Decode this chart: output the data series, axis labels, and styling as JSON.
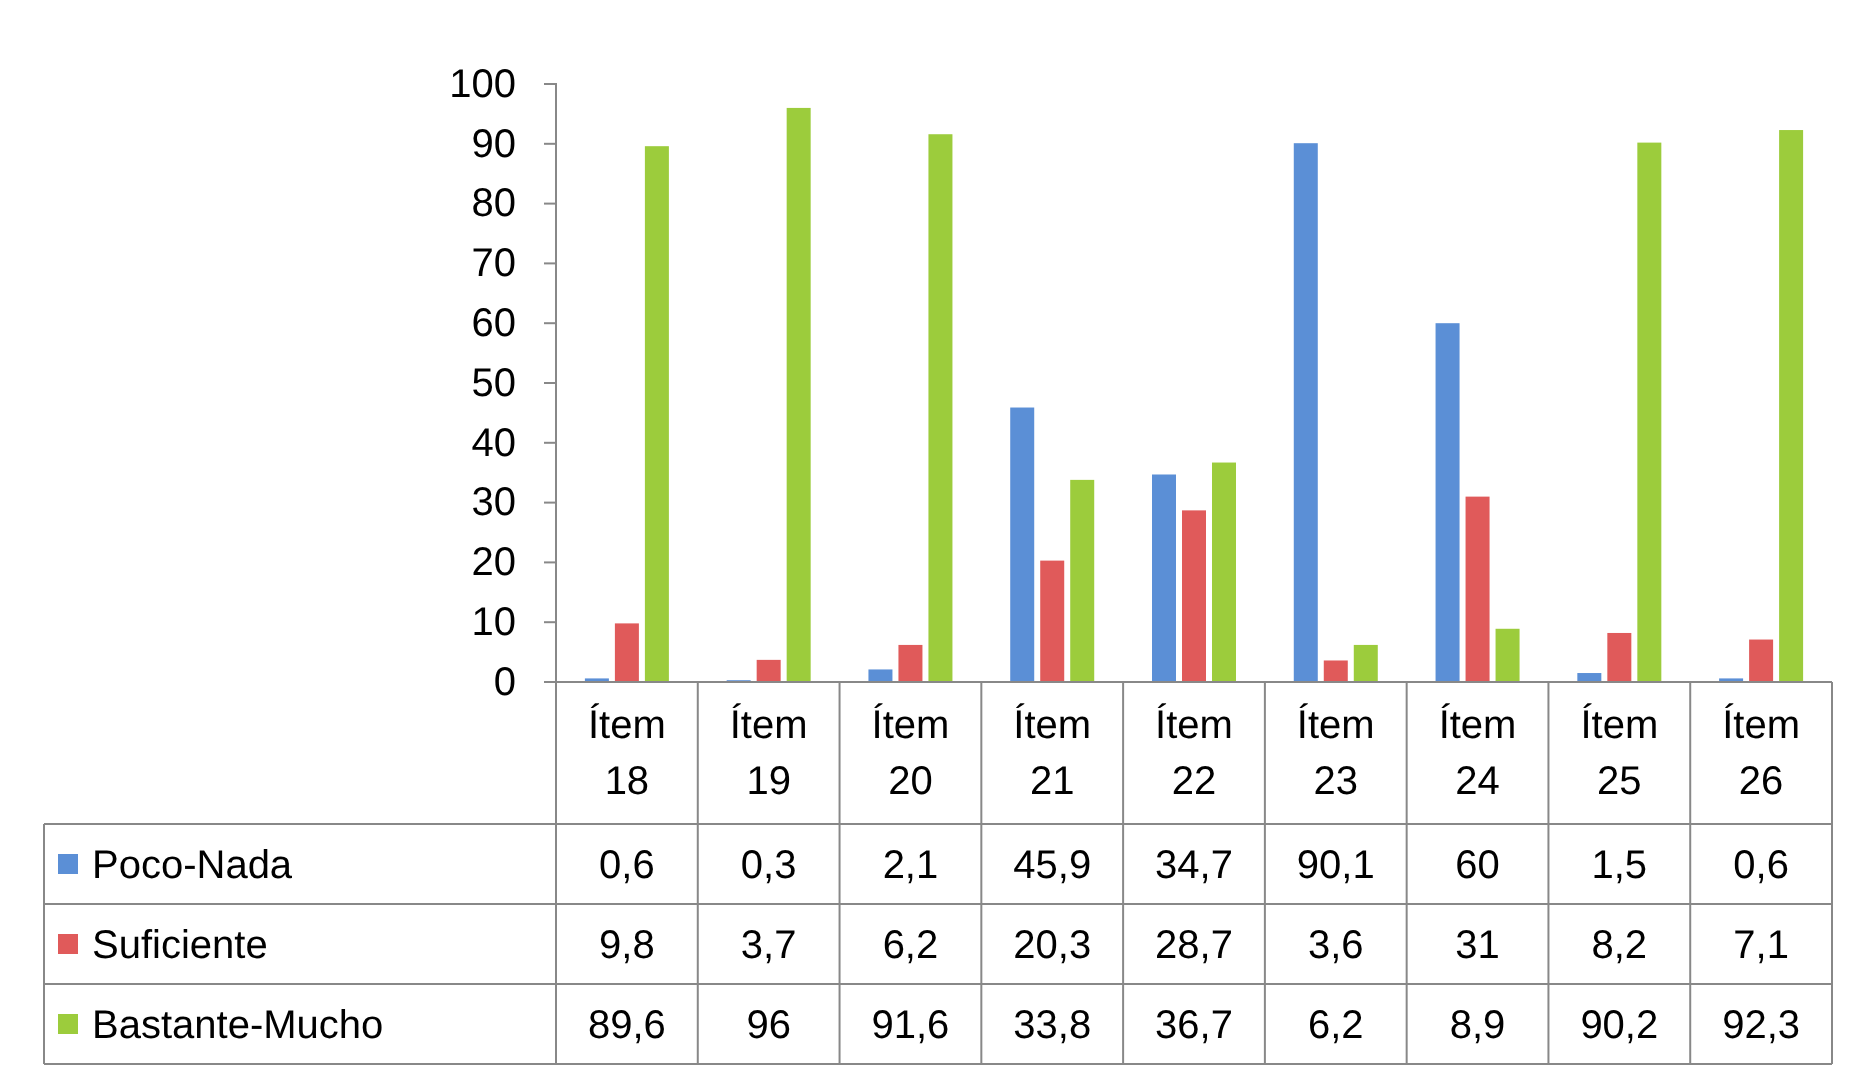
{
  "chart_data": {
    "type": "bar",
    "categories": [
      "Ítem 18",
      "Ítem 19",
      "Ítem 20",
      "Ítem 21",
      "Ítem 22",
      "Ítem 23",
      "Ítem 24",
      "Ítem 25",
      "Ítem 26"
    ],
    "series": [
      {
        "name": "Poco-Nada",
        "color": "#5b8fd6",
        "values": [
          0.6,
          0.3,
          2.1,
          45.9,
          34.7,
          90.1,
          60,
          1.5,
          0.6
        ],
        "value_labels": [
          "0,6",
          "0,3",
          "2,1",
          "45,9",
          "34,7",
          "90,1",
          "60",
          "1,5",
          "0,6"
        ]
      },
      {
        "name": "Suficiente",
        "color": "#e05a5a",
        "values": [
          9.8,
          3.7,
          6.2,
          20.3,
          28.7,
          3.6,
          31,
          8.2,
          7.1
        ],
        "value_labels": [
          "9,8",
          "3,7",
          "6,2",
          "20,3",
          "28,7",
          "3,6",
          "31",
          "8,2",
          "7,1"
        ]
      },
      {
        "name": "Bastante-Mucho",
        "color": "#9ccc3c",
        "values": [
          89.6,
          96,
          91.6,
          33.8,
          36.7,
          6.2,
          8.9,
          90.2,
          92.3
        ],
        "value_labels": [
          "89,6",
          "96",
          "91,6",
          "33,8",
          "36,7",
          "6,2",
          "8,9",
          "90,2",
          "92,3"
        ]
      }
    ],
    "ylim": [
      0,
      100
    ],
    "yticks": [
      0,
      10,
      20,
      30,
      40,
      50,
      60,
      70,
      80,
      90,
      100
    ],
    "legend": "bottom left",
    "grid": false
  }
}
